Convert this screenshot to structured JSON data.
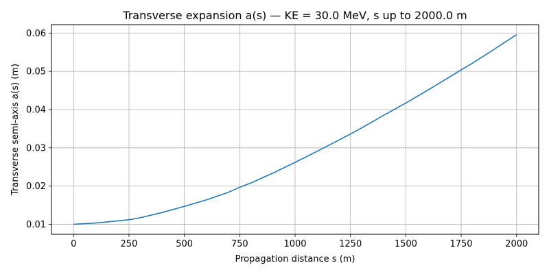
{
  "chart_data": {
    "type": "line",
    "title": "Transverse expansion a(s) — KE = 30.0 MeV, s up to 2000.0 m",
    "xlabel": "Propagation distance s (m)",
    "ylabel": "Transverse semi-axis a(s) (m)",
    "xlim": [
      -100,
      2100
    ],
    "ylim": [
      0.0074,
      0.0622
    ],
    "xticks": [
      0,
      250,
      500,
      750,
      1000,
      1250,
      1500,
      1750,
      2000
    ],
    "yticks": [
      0.01,
      0.02,
      0.03,
      0.04,
      0.05,
      0.06
    ],
    "xtick_labels": [
      "0",
      "250",
      "500",
      "750",
      "1000",
      "1250",
      "1500",
      "1750",
      "2000"
    ],
    "ytick_labels": [
      "0.01",
      "0.02",
      "0.03",
      "0.04",
      "0.05",
      "0.06"
    ],
    "grid": true,
    "series": [
      {
        "color": "#1f77b4",
        "x": [
          0,
          100,
          200,
          250,
          300,
          400,
          500,
          600,
          700,
          750,
          800,
          900,
          1000,
          1100,
          1200,
          1250,
          1300,
          1400,
          1500,
          1600,
          1700,
          1750,
          1800,
          1900,
          2000
        ],
        "y": [
          0.01,
          0.01035,
          0.0109,
          0.0112,
          0.0117,
          0.0131,
          0.0147,
          0.0164,
          0.0184,
          0.0197,
          0.0208,
          0.0234,
          0.0262,
          0.0291,
          0.0321,
          0.0336,
          0.0352,
          0.0385,
          0.0417,
          0.0451,
          0.0486,
          0.0504,
          0.0521,
          0.0558,
          0.0596
        ]
      }
    ]
  }
}
